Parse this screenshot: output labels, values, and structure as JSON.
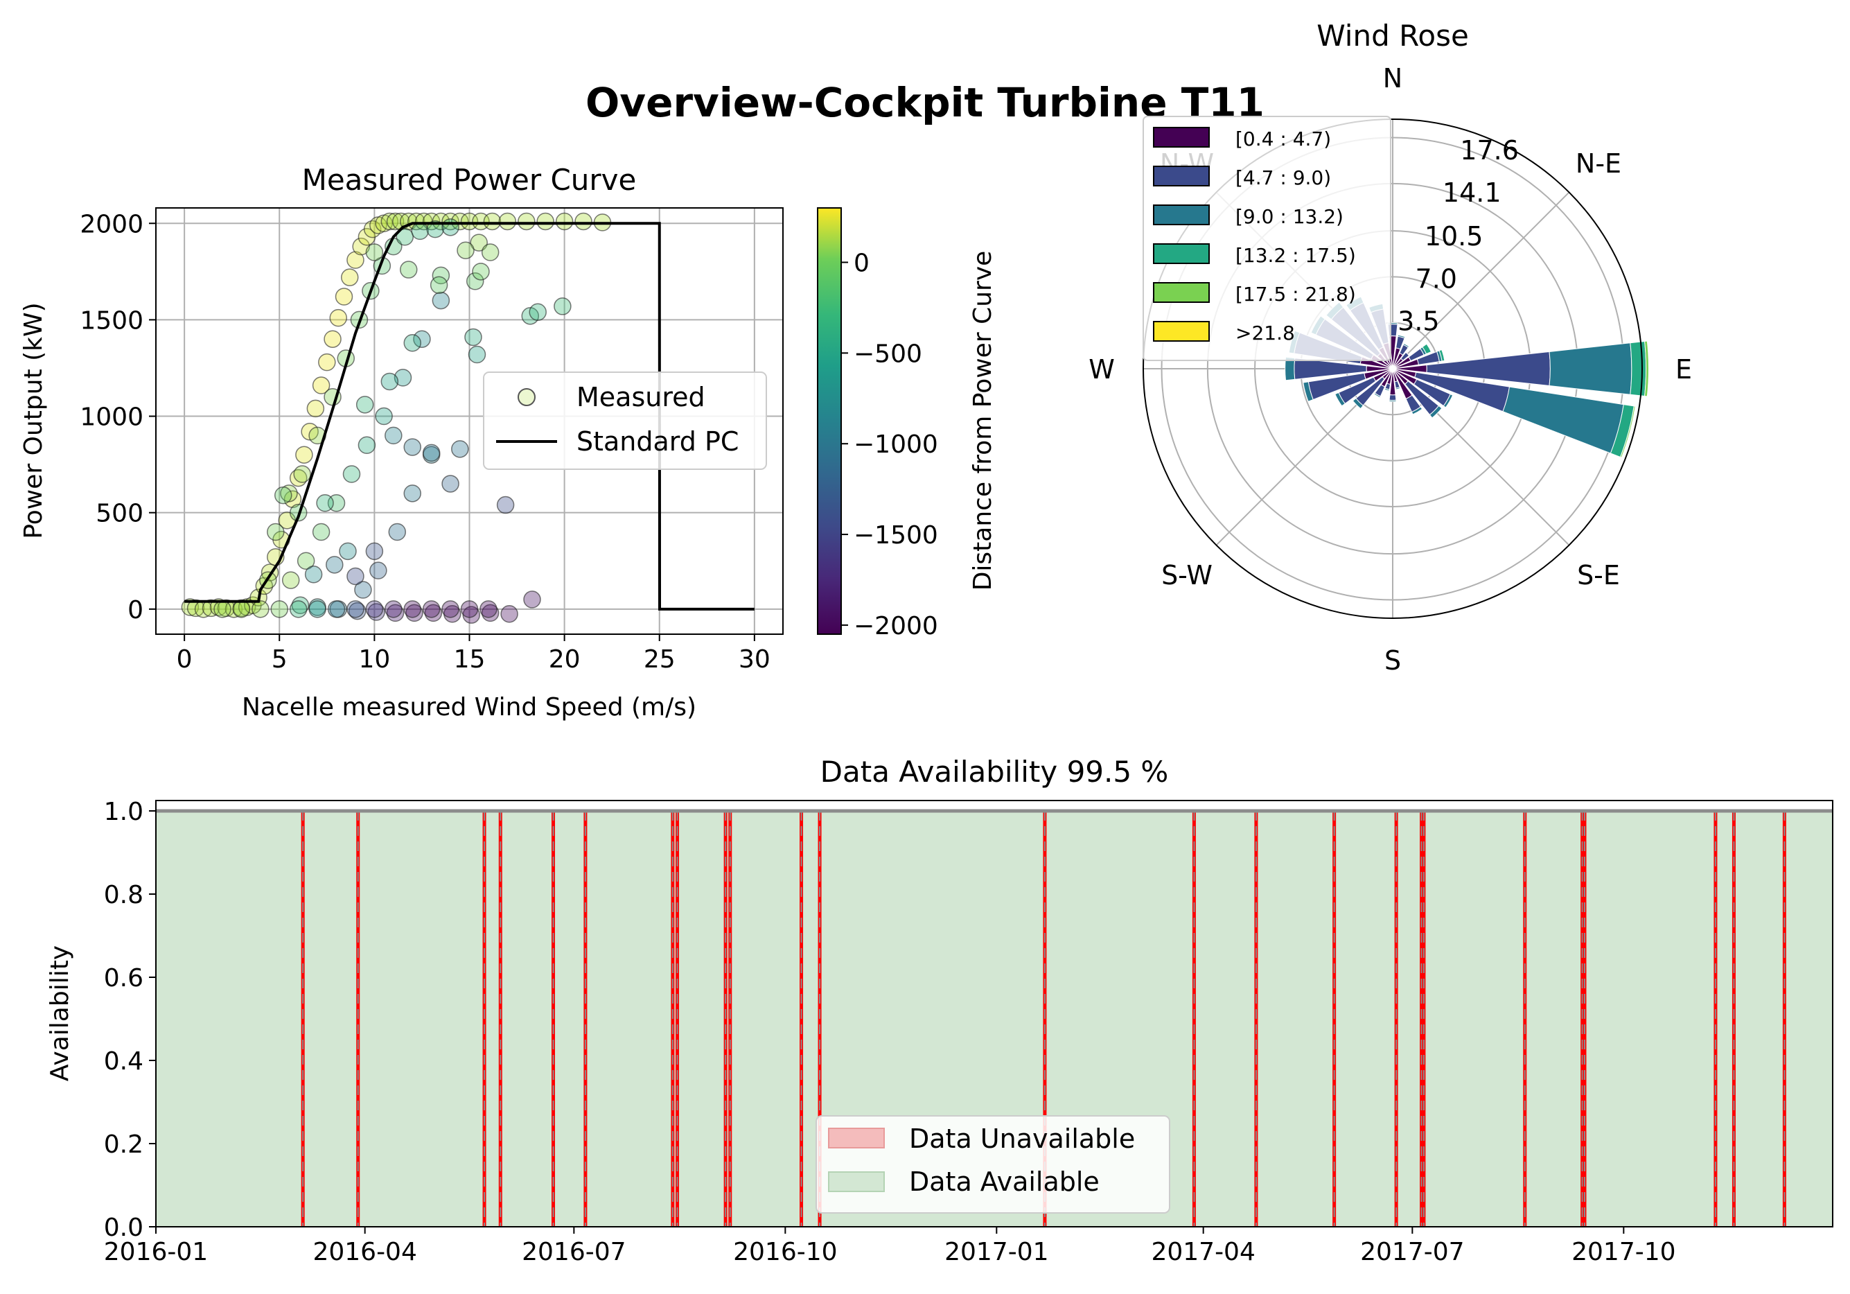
{
  "suptitle": "Overview-Cockpit Turbine T11",
  "chart_data": [
    {
      "type": "scatter",
      "title": "Measured Power Curve",
      "xlabel": "Nacelle measured Wind Speed (m/s)",
      "ylabel": "Power Output (kW)",
      "xlim": [
        -1.5,
        31.5
      ],
      "ylim": [
        -130,
        2080
      ],
      "xticks": [
        0,
        5,
        10,
        15,
        20,
        25,
        30
      ],
      "yticks": [
        0,
        500,
        1000,
        1500,
        2000
      ],
      "grid": true,
      "legend": {
        "placement": "center-right",
        "entries": [
          "Measured",
          "Standard PC"
        ]
      },
      "standard_pc": {
        "name": "Standard PC",
        "color": "#000000",
        "x": [
          0,
          0.5,
          1,
          2,
          3,
          3.9,
          4,
          5,
          6,
          7,
          8,
          9,
          10,
          10.5,
          11,
          11.5,
          12,
          13,
          15,
          20,
          24.9,
          25,
          25.01,
          30
        ],
        "y": [
          40,
          40,
          40,
          40,
          40,
          40,
          100,
          250,
          480,
          780,
          1100,
          1430,
          1700,
          1830,
          1930,
          1980,
          2000,
          2000,
          2000,
          2000,
          2000,
          2000,
          0,
          0
        ]
      },
      "measured": {
        "name": "Measured",
        "x": [
          0.3,
          0.6,
          1.0,
          1.4,
          1.8,
          2.2,
          2.6,
          3.0,
          3.3,
          3.6,
          3.9,
          4.2,
          4.5,
          4.8,
          5.1,
          5.4,
          5.7,
          6.0,
          6.3,
          6.6,
          6.9,
          7.2,
          7.5,
          7.8,
          8.1,
          8.4,
          8.7,
          9.0,
          9.3,
          9.6,
          9.9,
          10.2,
          10.5,
          10.8,
          11.1,
          11.4,
          11.8,
          12.2,
          12.6,
          13.0,
          13.5,
          14.0,
          14.5,
          15.0,
          15.6,
          16.2,
          17.0,
          18.0,
          19.0,
          20.0,
          21.0,
          22.0,
          5.5,
          6.2,
          7.0,
          7.8,
          8.5,
          9.2,
          9.8,
          10.4,
          11.0,
          11.6,
          12.4,
          13.2,
          14.0,
          5.6,
          6.4,
          7.2,
          8.0,
          8.8,
          9.6,
          10.5,
          11.5,
          12.5,
          13.5,
          15.2,
          15.4,
          18.2,
          18.6,
          19.9,
          16.9,
          6.0,
          7.4,
          8.6,
          9.4,
          10.2,
          11.2,
          12.0,
          13.0,
          14.5,
          15.5,
          6.8,
          7.9,
          9.0,
          10.0,
          11.0,
          12.0,
          13.0,
          14.0,
          15.3,
          16.1,
          5.2,
          4.8,
          4.4,
          6.1,
          7.0,
          8.1,
          9.1,
          10.1,
          11.1,
          12.1,
          13.1,
          14.1,
          15.1,
          16.1,
          17.1,
          18.3,
          2.0,
          3.0,
          4.0,
          5.0,
          6.0,
          7.0,
          8.0,
          9.0,
          10.0,
          11.0,
          12.0,
          13.0,
          14.0,
          15.0,
          16.0,
          9.5,
          10.8,
          12.0,
          13.5,
          14.8,
          10.0,
          11.8,
          13.4,
          15.6
        ],
        "y": [
          10,
          5,
          0,
          5,
          10,
          5,
          0,
          5,
          10,
          20,
          60,
          120,
          190,
          270,
          360,
          460,
          570,
          680,
          800,
          920,
          1040,
          1160,
          1280,
          1400,
          1510,
          1620,
          1720,
          1810,
          1880,
          1930,
          1970,
          1990,
          2000,
          2010,
          2010,
          2010,
          2010,
          2010,
          2010,
          2010,
          2010,
          2010,
          2010,
          2010,
          2010,
          2010,
          2010,
          2010,
          2010,
          2010,
          2010,
          2005,
          600,
          700,
          900,
          1100,
          1300,
          1500,
          1650,
          1780,
          1880,
          1930,
          1960,
          1970,
          1980,
          150,
          250,
          400,
          550,
          700,
          850,
          1000,
          1200,
          1400,
          1600,
          1410,
          1320,
          1520,
          1540,
          1570,
          540,
          500,
          550,
          300,
          100,
          200,
          400,
          600,
          800,
          830,
          1900,
          180,
          230,
          170,
          300,
          900,
          840,
          810,
          650,
          1700,
          1850,
          590,
          400,
          150,
          20,
          10,
          0,
          -10,
          -15,
          -20,
          -20,
          -20,
          -25,
          -30,
          -20,
          -25,
          50,
          0,
          0,
          0,
          0,
          0,
          0,
          0,
          0,
          0,
          0,
          0,
          0,
          0,
          0,
          0,
          1060,
          1180,
          1380,
          1730,
          1860,
          1850,
          1760,
          1680,
          1750
        ],
        "distance": [
          0,
          0,
          0,
          0,
          0,
          0,
          0,
          0,
          0,
          0,
          50,
          50,
          50,
          100,
          100,
          100,
          150,
          150,
          200,
          200,
          200,
          250,
          250,
          250,
          250,
          250,
          200,
          200,
          150,
          150,
          100,
          100,
          50,
          0,
          0,
          0,
          0,
          0,
          0,
          0,
          0,
          0,
          0,
          0,
          0,
          0,
          0,
          0,
          0,
          0,
          0,
          0,
          -100,
          -100,
          -100,
          -150,
          -200,
          -250,
          -300,
          -350,
          -400,
          -450,
          -500,
          -550,
          -600,
          -100,
          -200,
          -300,
          -400,
          -500,
          -600,
          -700,
          -800,
          -900,
          -1000,
          -600,
          -700,
          -500,
          -500,
          -450,
          -1500,
          -300,
          -500,
          -900,
          -1200,
          -1300,
          -1200,
          -1100,
          -1000,
          -1150,
          -100,
          -900,
          -1100,
          -1500,
          -1450,
          -1000,
          -1100,
          -1150,
          -1300,
          -300,
          -150,
          -300,
          -200,
          -100,
          -500,
          -800,
          -1100,
          -1450,
          -1700,
          -1900,
          -1950,
          -2000,
          -2000,
          -2000,
          -2000,
          -2000,
          -1950,
          -100,
          -100,
          -100,
          -200,
          -500,
          -800,
          -1100,
          -1400,
          -1700,
          -1900,
          -2000,
          -2000,
          -2000,
          -2000,
          -2000,
          -500,
          -700,
          -600,
          -300,
          -150,
          -200,
          -250,
          -300,
          -250
        ]
      },
      "colorbar": {
        "label": "Distance from Power Curve",
        "range": [
          -2050,
          300
        ],
        "ticks": [
          0,
          -500,
          -1000,
          -1500,
          -2000
        ],
        "tick_labels": [
          "0",
          "−500",
          "−1000",
          "−1500",
          "−2000"
        ],
        "colormap": "viridis"
      }
    },
    {
      "type": "polar-bar",
      "title": "Wind Rose",
      "directions": [
        "N",
        "N-E",
        "E",
        "S-E",
        "S",
        "S-W",
        "W",
        "N-W"
      ],
      "radial_ticks": [
        "3.5",
        "7.0",
        "10.5",
        "14.1",
        "17.6"
      ],
      "radial_tick_values": [
        3.5,
        7.0,
        10.5,
        14.1,
        17.6
      ],
      "rmax": 19.0,
      "grid": true,
      "legend": {
        "placement": "top-left"
      },
      "speed_bins": [
        "[0.4 : 4.7)",
        "[4.7 : 9.0)",
        "[9.0 : 13.2)",
        "[13.2 : 17.5)",
        "[17.5 : 21.8)",
        ">21.8"
      ],
      "bin_colors": [
        "#440154",
        "#3b4a8b",
        "#26788e",
        "#23a883",
        "#7ad151",
        "#fde725"
      ],
      "sectors": [
        {
          "angle": 0,
          "cumulative": [
            2.5,
            3.4,
            3.5
          ]
        },
        {
          "angle": 15,
          "cumulative": [
            1.6,
            2.5,
            2.6
          ]
        },
        {
          "angle": 30,
          "cumulative": [
            1.3,
            2.0,
            2.1
          ]
        },
        {
          "angle": 45,
          "cumulative": [
            1.0,
            1.6,
            1.6
          ]
        },
        {
          "angle": 60,
          "cumulative": [
            1.5,
            2.6,
            2.8,
            3.2
          ]
        },
        {
          "angle": 75,
          "cumulative": [
            2.0,
            3.6,
            3.8,
            4.0
          ]
        },
        {
          "angle": 90,
          "cumulative": [
            2.6,
            12.0,
            18.2,
            19.3,
            19.5
          ]
        },
        {
          "angle": 105,
          "cumulative": [
            1.8,
            9.0,
            17.8,
            18.6,
            18.7
          ]
        },
        {
          "angle": 120,
          "cumulative": [
            2.0,
            4.8,
            5.0
          ]
        },
        {
          "angle": 135,
          "cumulative": [
            1.5,
            4.5,
            4.8
          ]
        },
        {
          "angle": 150,
          "cumulative": [
            2.5,
            3.6,
            3.8
          ]
        },
        {
          "angle": 165,
          "cumulative": [
            1.0,
            1.5,
            1.6
          ]
        },
        {
          "angle": 180,
          "cumulative": [
            2.0,
            2.4,
            2.5
          ]
        },
        {
          "angle": 195,
          "cumulative": [
            1.2,
            1.6,
            1.7
          ]
        },
        {
          "angle": 210,
          "cumulative": [
            1.5,
            2.3,
            2.4
          ]
        },
        {
          "angle": 225,
          "cumulative": [
            1.0,
            3.6,
            3.9
          ]
        },
        {
          "angle": 240,
          "cumulative": [
            1.6,
            4.5,
            4.8
          ]
        },
        {
          "angle": 255,
          "cumulative": [
            2.2,
            6.5,
            6.9
          ]
        },
        {
          "angle": 270,
          "cumulative": [
            2.0,
            7.5,
            8.2
          ]
        },
        {
          "angle": 285,
          "cumulative": [
            2.5,
            7.6,
            8.0
          ]
        },
        {
          "angle": 300,
          "cumulative": [
            1.8,
            6.4,
            6.8
          ]
        },
        {
          "angle": 315,
          "cumulative": [
            1.5,
            6.0,
            6.5
          ]
        },
        {
          "angle": 330,
          "cumulative": [
            1.8,
            5.5,
            6.0
          ]
        },
        {
          "angle": 345,
          "cumulative": [
            2.0,
            4.6,
            5.0
          ]
        }
      ]
    },
    {
      "type": "area",
      "title": "Data Availability 99.5 %",
      "ylabel": "Availability",
      "xlim": [
        "2016-01-01",
        "2017-12-31"
      ],
      "ylim": [
        0.0,
        1.025
      ],
      "xticks": [
        "2016-01",
        "2016-04",
        "2016-07",
        "2016-10",
        "2017-01",
        "2017-04",
        "2017-07",
        "2017-10"
      ],
      "yticks": [
        "0.0",
        "0.2",
        "0.4",
        "0.6",
        "0.8",
        "1.0"
      ],
      "legend": {
        "placement": "bottom-center",
        "entries": [
          "Data Unavailable",
          "Data Available"
        ]
      },
      "available_color": "#d3e7d3",
      "unavailable_color": "#ff0000",
      "gaps": [
        "2016-03-05",
        "2016-03-29",
        "2016-05-23",
        "2016-05-30",
        "2016-06-22",
        "2016-07-06",
        "2016-08-13",
        "2016-08-15",
        "2016-09-05",
        "2016-09-07",
        "2016-10-08",
        "2016-10-16",
        "2017-01-22",
        "2017-03-28",
        "2017-04-24",
        "2017-05-28",
        "2017-06-24",
        "2017-07-05",
        "2017-07-06",
        "2017-08-19",
        "2017-09-13",
        "2017-09-14",
        "2017-11-10",
        "2017-11-18",
        "2017-12-10"
      ]
    }
  ]
}
